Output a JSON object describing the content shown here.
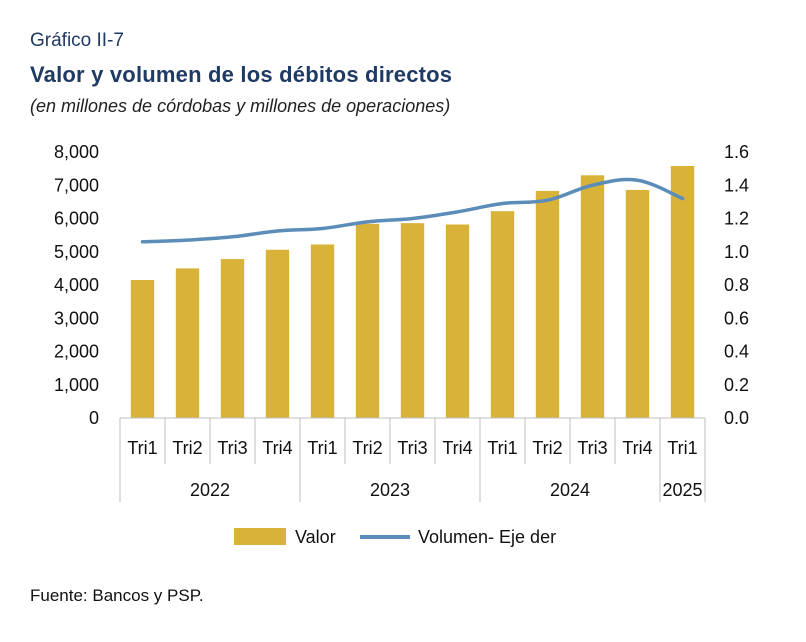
{
  "header": {
    "figure_label": "Gráfico II-7",
    "title": "Valor y volumen de los débitos directos",
    "subtitle": "(en millones de córdobas y millones de operaciones)"
  },
  "footer": {
    "source": "Fuente: Bancos y PSP."
  },
  "colors": {
    "bar": "#D9B23A",
    "line": "#5B8DB8",
    "title": "#1F3A63",
    "axis": "#BFBFBF"
  },
  "chart_data": {
    "type": "bar",
    "categories": [
      "Tri1",
      "Tri2",
      "Tri3",
      "Tri4",
      "Tri1",
      "Tri2",
      "Tri3",
      "Tri4",
      "Tri1",
      "Tri2",
      "Tri3",
      "Tri4",
      "Tri1"
    ],
    "groups": [
      {
        "label": "2022",
        "count": 4
      },
      {
        "label": "2023",
        "count": 4
      },
      {
        "label": "2024",
        "count": 4
      },
      {
        "label": "2025",
        "count": 1
      }
    ],
    "series": [
      {
        "name": "Valor",
        "type": "bar",
        "axis": "left",
        "values": [
          4150,
          4500,
          4780,
          5060,
          5220,
          5840,
          5860,
          5820,
          6220,
          6830,
          7300,
          6860,
          7580
        ]
      },
      {
        "name": "Volumen- Eje der",
        "type": "line",
        "axis": "right",
        "values": [
          1.06,
          1.07,
          1.09,
          1.125,
          1.14,
          1.18,
          1.2,
          1.24,
          1.29,
          1.31,
          1.4,
          1.43,
          1.32
        ]
      }
    ],
    "y_left": {
      "min": 0,
      "max": 8000,
      "ticks": [
        "0",
        "1,000",
        "2,000",
        "3,000",
        "4,000",
        "5,000",
        "6,000",
        "7,000",
        "8,000"
      ]
    },
    "y_right": {
      "min": 0,
      "max": 1.6,
      "ticks": [
        "0.0",
        "0.2",
        "0.4",
        "0.6",
        "0.8",
        "1.0",
        "1.2",
        "1.4",
        "1.6"
      ]
    },
    "legend": {
      "position": "bottom",
      "items": [
        "Valor",
        "Volumen- Eje der"
      ]
    },
    "grid": false
  }
}
